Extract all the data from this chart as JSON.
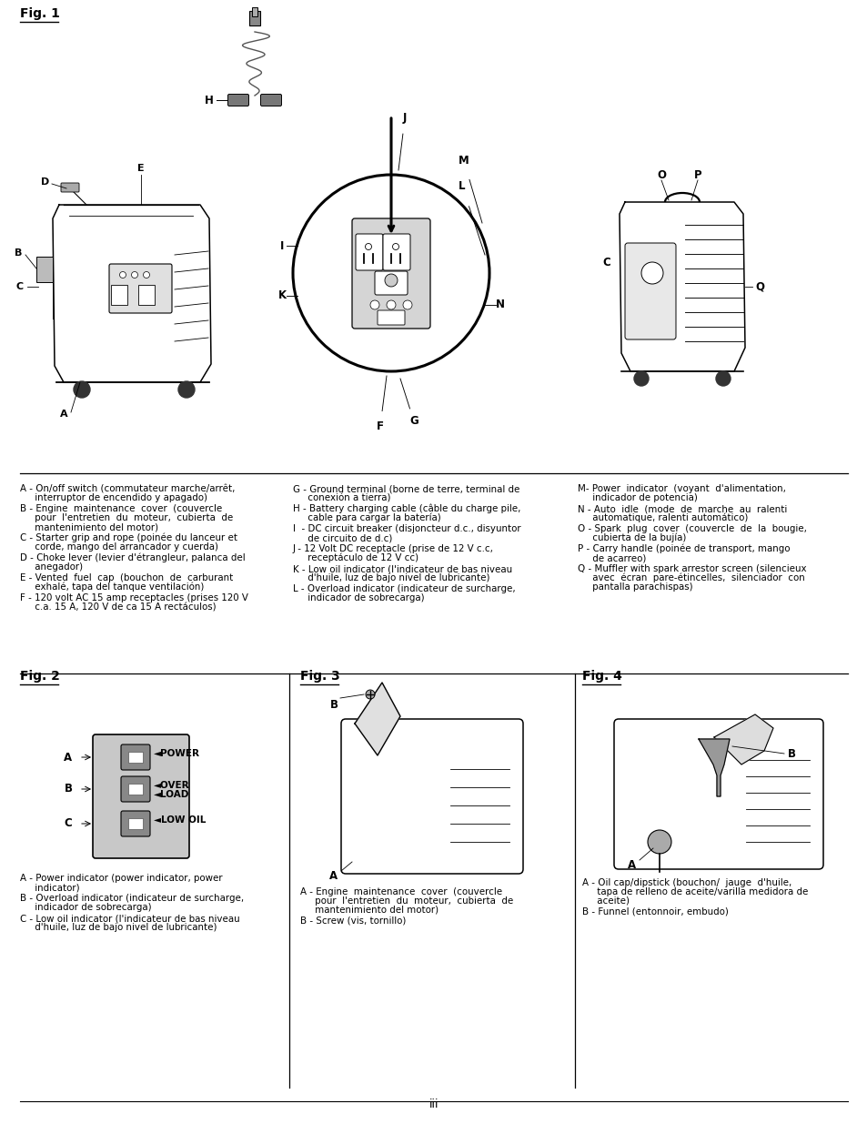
{
  "background_color": "#ffffff",
  "fig1_label": "Fig. 1",
  "fig2_label": "Fig. 2",
  "fig3_label": "Fig. 3",
  "fig4_label": "Fig. 4",
  "page_number": "iii",
  "col1_text": [
    "A - On/off switch (commutateur marche/arrêt,\n     interruptor de encendido y apagado)",
    "B - Engine  maintenance  cover  (couvercle\n     pour  l'entretien  du  moteur,  cubierta  de\n     mantenimiento del motor)",
    "C - Starter grip and rope (poinée du lanceur et\n     corde, mango del arrancador y cuerda)",
    "D - Choke lever (levier d'étrangleur, palanca del\n     anegador)",
    "E - Vented  fuel  cap  (bouchon  de  carburant\n     exhalé, tapa del tanque ventilación)",
    "F - 120 volt AC 15 amp receptacles (prises 120 V\n     c.a. 15 A, 120 V de ca 15 A rectáculos)"
  ],
  "col2_text": [
    "G - Ground terminal (borne de terre, terminal de\n     conexión a tierra)",
    "H - Battery charging cable (câble du charge pile,\n     cable para cargar la batería)",
    "I  - DC circuit breaker (disjoncteur d.c., disyuntor\n     de circuito de d.c)",
    "J - 12 Volt DC receptacle (prise de 12 V c.c,\n     receptáculo de 12 V cc)",
    "K - Low oil indicator (l'indicateur de bas niveau\n     d'huile, luz de bajo nivel de lubricante)",
    "L - Overload indicator (indicateur de surcharge,\n     indicador de sobrecarga)"
  ],
  "col3_text": [
    "M- Power  indicator  (voyant  d'alimentation,\n     indicador de potencia)",
    "N - Auto  idle  (mode  de  marche  au  ralenti\n     automatique, ralenti automático)",
    "O - Spark  plug  cover  (couvercle  de  la  bougie,\n     cubierta de la bujía)",
    "P - Carry handle (poinée de transport, mango\n     de acarreo)",
    "Q - Muffler with spark arrestor screen (silencieux\n     avec  écran  pare-étincelles,  silenciador  con\n     pantalla parachispas)"
  ],
  "fig2_col1_text": [
    "A - Power indicator (power indicator, power\n     indicator)",
    "B - Overload indicator (indicateur de surcharge,\n     indicador de sobrecarga)",
    "C - Low oil indicator (l'indicateur de bas niveau\n     d'huile, luz de bajo nivel de lubricante)"
  ],
  "fig3_col_text": [
    "A - Engine  maintenance  cover  (couvercle\n     pour  l'entretien  du  moteur,  cubierta  de\n     mantenimiento del motor)",
    "B - Screw (vis, tornillo)"
  ],
  "fig4_col_text": [
    "A - Oil cap/dipstick (bouchon/  jauge  d'huile,\n     tapa de relleno de aceite/varilla medidora de\n     aceite)",
    "B - Funnel (entonnoir, embudo)"
  ],
  "text_fontsize": 7.4
}
